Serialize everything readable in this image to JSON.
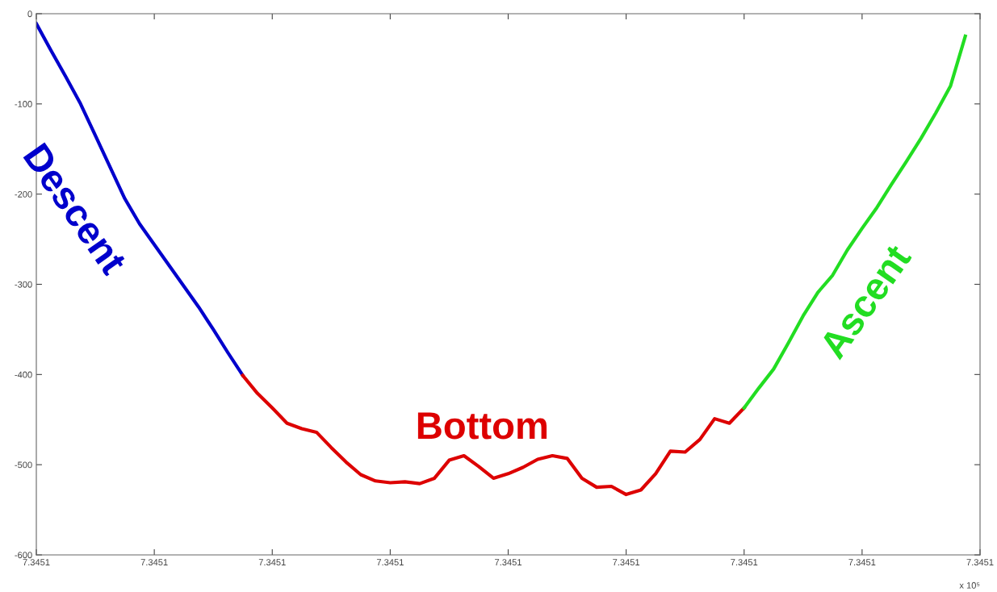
{
  "chart_data": {
    "type": "line",
    "categories": [
      "7.3451",
      null,
      null,
      null,
      null,
      null,
      null,
      null,
      "7.3451",
      null,
      null,
      null,
      null,
      null,
      null,
      null,
      "7.3451",
      null,
      null,
      null,
      null,
      null,
      null,
      null,
      "7.3451",
      null,
      null,
      null,
      null,
      null,
      null,
      null,
      "7.3451",
      null,
      null,
      null,
      null,
      null,
      null,
      null,
      "7.3451",
      null,
      null,
      null,
      null,
      null,
      null,
      null,
      "7.3451",
      null,
      null,
      null,
      null,
      null,
      null,
      null,
      "7.3451",
      null,
      null,
      null,
      null,
      null,
      null,
      null,
      "7.3451"
    ],
    "ylim": [
      -600,
      0
    ],
    "yticks": [
      -600,
      -500,
      -400,
      -300,
      -200,
      -100,
      0
    ],
    "grid": false,
    "annotations": [
      "x 10⁵"
    ],
    "series": [
      {
        "name": "Descent",
        "color": "#0000cc",
        "values": [
          -11,
          -41,
          -70,
          -100,
          -135,
          -170,
          -205,
          -233,
          -256,
          -279,
          -302,
          -325,
          -350,
          -376,
          -401,
          null,
          null,
          null,
          null,
          null,
          null,
          null,
          null,
          null,
          null,
          null,
          null,
          null,
          null,
          null,
          null,
          null,
          null,
          null,
          null,
          null,
          null,
          null,
          null,
          null,
          null,
          null,
          null,
          null,
          null,
          null,
          null,
          null,
          null,
          null,
          null,
          null,
          null,
          null,
          null,
          null,
          null,
          null,
          null,
          null,
          null,
          null,
          null,
          null,
          null
        ]
      },
      {
        "name": "Bottom",
        "color": "#dd0000",
        "values": [
          null,
          null,
          null,
          null,
          null,
          null,
          null,
          null,
          null,
          null,
          null,
          null,
          null,
          null,
          -401,
          -421,
          -437,
          -454,
          -460,
          -464,
          -481,
          -497,
          -511,
          -518,
          -520,
          -519,
          -521,
          -515,
          -495,
          -490,
          -502,
          -515,
          -510,
          -503,
          -494,
          -490,
          -493,
          -515,
          -525,
          -524,
          -533,
          -528,
          -510,
          -485,
          -486,
          -472,
          -449,
          -454,
          -437,
          null,
          null,
          null,
          null,
          null,
          null,
          null,
          null,
          null,
          null,
          null,
          null,
          null,
          null,
          null,
          null
        ]
      },
      {
        "name": "Ascent",
        "color": "#22dd22",
        "values": [
          null,
          null,
          null,
          null,
          null,
          null,
          null,
          null,
          null,
          null,
          null,
          null,
          null,
          null,
          null,
          null,
          null,
          null,
          null,
          null,
          null,
          null,
          null,
          null,
          null,
          null,
          null,
          null,
          null,
          null,
          null,
          null,
          null,
          null,
          null,
          null,
          null,
          null,
          null,
          null,
          null,
          null,
          null,
          null,
          null,
          null,
          null,
          null,
          -437,
          -415,
          -394,
          -365,
          -335,
          -309,
          -290,
          -262,
          -238,
          -215,
          -189,
          -164,
          -138,
          -110,
          -80,
          -25,
          null
        ]
      }
    ]
  }
}
